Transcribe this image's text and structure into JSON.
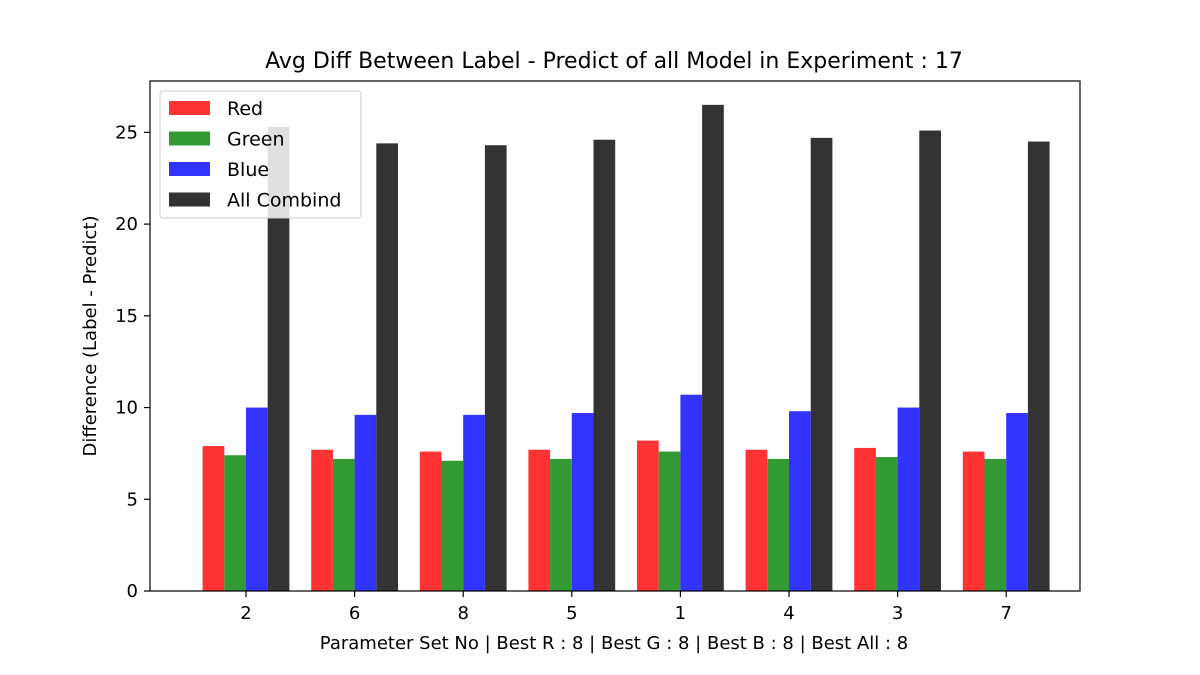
{
  "chart_data": {
    "type": "bar",
    "title": "Avg Diff Between Label - Predict of all Model in Experiment : 17",
    "xlabel": "Parameter Set No | Best R : 8 | Best G : 8 | Best B : 8 | Best All : 8",
    "ylabel": "Difference (Label - Predict)",
    "categories": [
      "2",
      "6",
      "8",
      "5",
      "1",
      "4",
      "3",
      "7"
    ],
    "ylim": [
      0,
      27.8
    ],
    "yticks": [
      0,
      5,
      10,
      15,
      20,
      25
    ],
    "grid": false,
    "legend_position": "top-left",
    "series": [
      {
        "name": "Red",
        "color": "#ff3333",
        "values": [
          7.9,
          7.7,
          7.6,
          7.7,
          8.2,
          7.7,
          7.8,
          7.6
        ]
      },
      {
        "name": "Green",
        "color": "#339933",
        "values": [
          7.4,
          7.2,
          7.1,
          7.2,
          7.6,
          7.2,
          7.3,
          7.2
        ]
      },
      {
        "name": "Blue",
        "color": "#3333ff",
        "values": [
          10.0,
          9.6,
          9.6,
          9.7,
          10.7,
          9.8,
          10.0,
          9.7
        ]
      },
      {
        "name": "All Combind",
        "color": "#333333",
        "values": [
          25.3,
          24.4,
          24.3,
          24.6,
          26.5,
          24.7,
          25.1,
          24.5
        ]
      }
    ]
  }
}
